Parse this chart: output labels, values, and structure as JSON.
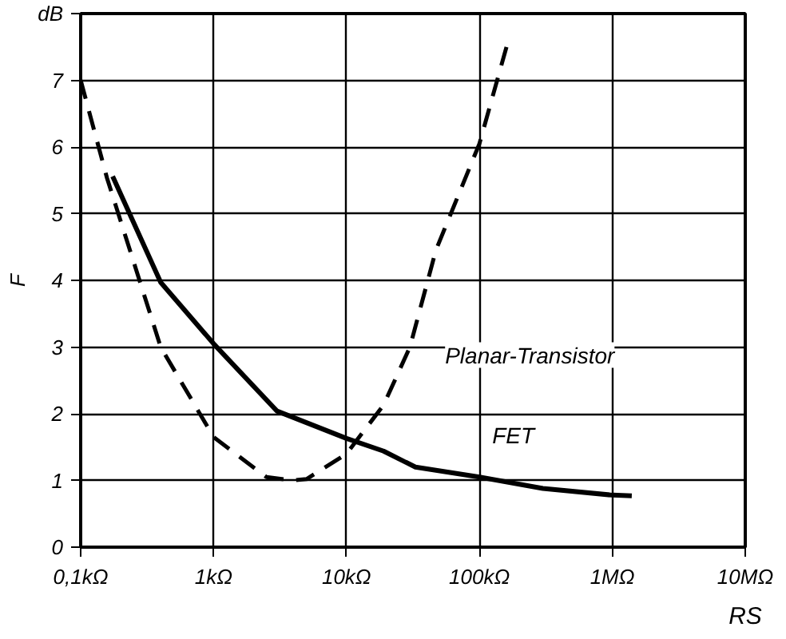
{
  "chart_data": {
    "type": "line",
    "xlabel": "RS",
    "ylabel": "F",
    "log": "x",
    "grid": true,
    "xlim": [
      100,
      10000000
    ],
    "ylim": [
      0,
      8
    ],
    "xticks": [
      {
        "value": 100,
        "label": "0,1kΩ"
      },
      {
        "value": 1000,
        "label": "1kΩ"
      },
      {
        "value": 10000,
        "label": "10kΩ"
      },
      {
        "value": 100000,
        "label": "100kΩ"
      },
      {
        "value": 1000000,
        "label": "1MΩ"
      },
      {
        "value": 10000000,
        "label": "10MΩ"
      }
    ],
    "yticks": [
      0,
      1,
      2,
      3,
      4,
      5,
      6,
      7,
      {
        "value": 8,
        "label": "dB"
      }
    ],
    "series": [
      {
        "name": "FET",
        "color": "#000000",
        "line_style": "solid",
        "x": [
          174,
          400,
          1000,
          3000,
          10000,
          19000,
          33000,
          100000,
          300000,
          1000000,
          1400000
        ],
        "values": [
          5.56,
          3.97,
          3.05,
          2.04,
          1.63,
          1.44,
          1.2,
          1.05,
          0.88,
          0.78,
          0.77
        ]
      },
      {
        "name": "Planar-Transistor",
        "color": "#000000",
        "line_style": "dashed",
        "x": [
          100,
          158,
          400,
          1000,
          2500,
          3950,
          5000,
          10000,
          19000,
          30000,
          47000,
          100000,
          164000
        ],
        "values": [
          7.0,
          5.53,
          3.0,
          1.65,
          1.05,
          1.0,
          1.02,
          1.4,
          2.13,
          3.0,
          4.45,
          6.05,
          7.58
        ]
      }
    ]
  }
}
